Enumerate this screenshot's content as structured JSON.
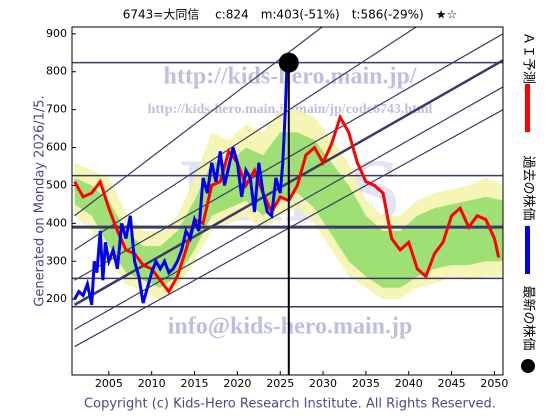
{
  "chart_data": {
    "type": "line",
    "title": "6743=大同信　 c:824　m:403(-51%)　t:586(-29%)　★☆",
    "side_note": "Generated on Monday 2026/1/5.",
    "footer": "Copyright (c) Kids-Hero Research Institute. All Rights Reserved.",
    "watermarks": [
      "http://kids-hero.main.jp/",
      "http://kids-hero.main.jp/main/jp/code6743.html",
      "info@kids-hero.main.jp",
      "KIDS"
    ],
    "xlim": [
      2000.7,
      2051
    ],
    "xticks": [
      2005,
      2010,
      2015,
      2020,
      2025,
      2030,
      2035,
      2040,
      2045,
      2050
    ],
    "ylim": [
      0,
      918
    ],
    "yticks": [
      200,
      300,
      400,
      500,
      600,
      700,
      800,
      900
    ],
    "bands": [
      {
        "color": "#f3f5a8",
        "x": [
          2001,
          2003,
          2005,
          2007,
          2009,
          2011,
          2013,
          2015,
          2017,
          2019,
          2021,
          2023,
          2025,
          2027,
          2029,
          2031,
          2033,
          2035,
          2037,
          2039,
          2041,
          2043,
          2045,
          2047,
          2049,
          2051
        ],
        "upper": [
          560,
          540,
          520,
          430,
          380,
          380,
          420,
          520,
          640,
          620,
          660,
          640,
          700,
          700,
          680,
          620,
          560,
          460,
          420,
          420,
          460,
          480,
          490,
          500,
          520,
          500
        ],
        "lower": [
          420,
          380,
          300,
          240,
          220,
          200,
          230,
          300,
          380,
          400,
          420,
          380,
          420,
          440,
          400,
          330,
          260,
          230,
          200,
          200,
          230,
          240,
          260,
          250,
          260,
          260
        ]
      },
      {
        "color": "#8fdc6a",
        "x": [
          2001,
          2003,
          2005,
          2007,
          2009,
          2011,
          2013,
          2015,
          2017,
          2019,
          2021,
          2023,
          2025,
          2027,
          2029,
          2031,
          2033,
          2035,
          2037,
          2039,
          2041,
          2043,
          2045,
          2047,
          2049,
          2051
        ],
        "upper": [
          520,
          500,
          460,
          380,
          340,
          340,
          380,
          460,
          560,
          560,
          600,
          580,
          640,
          640,
          620,
          560,
          500,
          420,
          380,
          380,
          420,
          440,
          450,
          460,
          470,
          460
        ],
        "lower": [
          450,
          420,
          340,
          270,
          250,
          230,
          260,
          330,
          420,
          440,
          460,
          420,
          460,
          480,
          440,
          370,
          300,
          260,
          230,
          230,
          260,
          280,
          290,
          290,
          300,
          300
        ]
      }
    ],
    "hlines": [
      824,
      526,
      390,
      255,
      180
    ],
    "trendlines": [
      {
        "x": [
          2001,
          2051
        ],
        "y": [
          75,
          700
        ]
      },
      {
        "x": [
          2001,
          2051
        ],
        "y": [
          120,
          760
        ]
      },
      {
        "x": [
          2001,
          2051
        ],
        "y": [
          185,
          830
        ]
      },
      {
        "x": [
          2001,
          2051
        ],
        "y": [
          250,
          900
        ]
      },
      {
        "x": [
          2001,
          2041
        ],
        "y": [
          330,
          920
        ]
      },
      {
        "x": [
          2001,
          2030
        ],
        "y": [
          420,
          920
        ]
      }
    ],
    "series": [
      {
        "name": "ＡＩ予測",
        "color": "#ff0000",
        "x": [
          2001,
          2002,
          2003,
          2004,
          2005,
          2006,
          2007,
          2008,
          2009,
          2010,
          2011,
          2012,
          2013,
          2014,
          2015,
          2016,
          2017,
          2018,
          2019,
          2020,
          2021,
          2022,
          2023,
          2024,
          2025,
          2026,
          2027,
          2028,
          2029,
          2030,
          2031,
          2032,
          2033,
          2034,
          2035,
          2036,
          2037,
          2038,
          2039,
          2040,
          2041,
          2042,
          2043,
          2044,
          2045,
          2046,
          2047,
          2048,
          2049,
          2050,
          2050.5
        ],
        "values": [
          510,
          470,
          480,
          510,
          440,
          380,
          330,
          320,
          290,
          280,
          250,
          220,
          260,
          330,
          410,
          400,
          500,
          510,
          590,
          560,
          500,
          540,
          480,
          430,
          470,
          460,
          500,
          580,
          600,
          560,
          610,
          680,
          640,
          560,
          510,
          500,
          480,
          360,
          330,
          350,
          280,
          260,
          320,
          350,
          420,
          440,
          390,
          420,
          410,
          360,
          310
        ]
      },
      {
        "name": "過去の株価",
        "color": "#0000ee",
        "x": [
          2001,
          2001.5,
          2002,
          2002.5,
          2003,
          2003.3,
          2003.6,
          2004,
          2004.3,
          2004.6,
          2005,
          2005.5,
          2006,
          2006.5,
          2007,
          2007.5,
          2008,
          2008.5,
          2009,
          2009.5,
          2010,
          2010.5,
          2011,
          2011.5,
          2012,
          2012.5,
          2013,
          2013.5,
          2014,
          2014.5,
          2015,
          2015.5,
          2016,
          2016.5,
          2017,
          2017.5,
          2018,
          2018.5,
          2019,
          2019.5,
          2020,
          2020.5,
          2021,
          2021.5,
          2022,
          2022.5,
          2023,
          2023.5,
          2024,
          2024.5,
          2025,
          2025.3,
          2025.6,
          2025.8
        ],
        "values": [
          200,
          220,
          210,
          240,
          185,
          300,
          270,
          380,
          250,
          350,
          300,
          330,
          280,
          400,
          360,
          420,
          300,
          260,
          190,
          230,
          270,
          300,
          280,
          300,
          270,
          280,
          300,
          330,
          380,
          360,
          410,
          380,
          520,
          480,
          560,
          510,
          590,
          500,
          550,
          600,
          560,
          470,
          540,
          520,
          430,
          560,
          480,
          430,
          420,
          520,
          480,
          560,
          700,
          824
        ]
      },
      {
        "name": "最新の株価",
        "color": "#000000",
        "x": [
          2026
        ],
        "values": [
          824
        ]
      }
    ]
  }
}
